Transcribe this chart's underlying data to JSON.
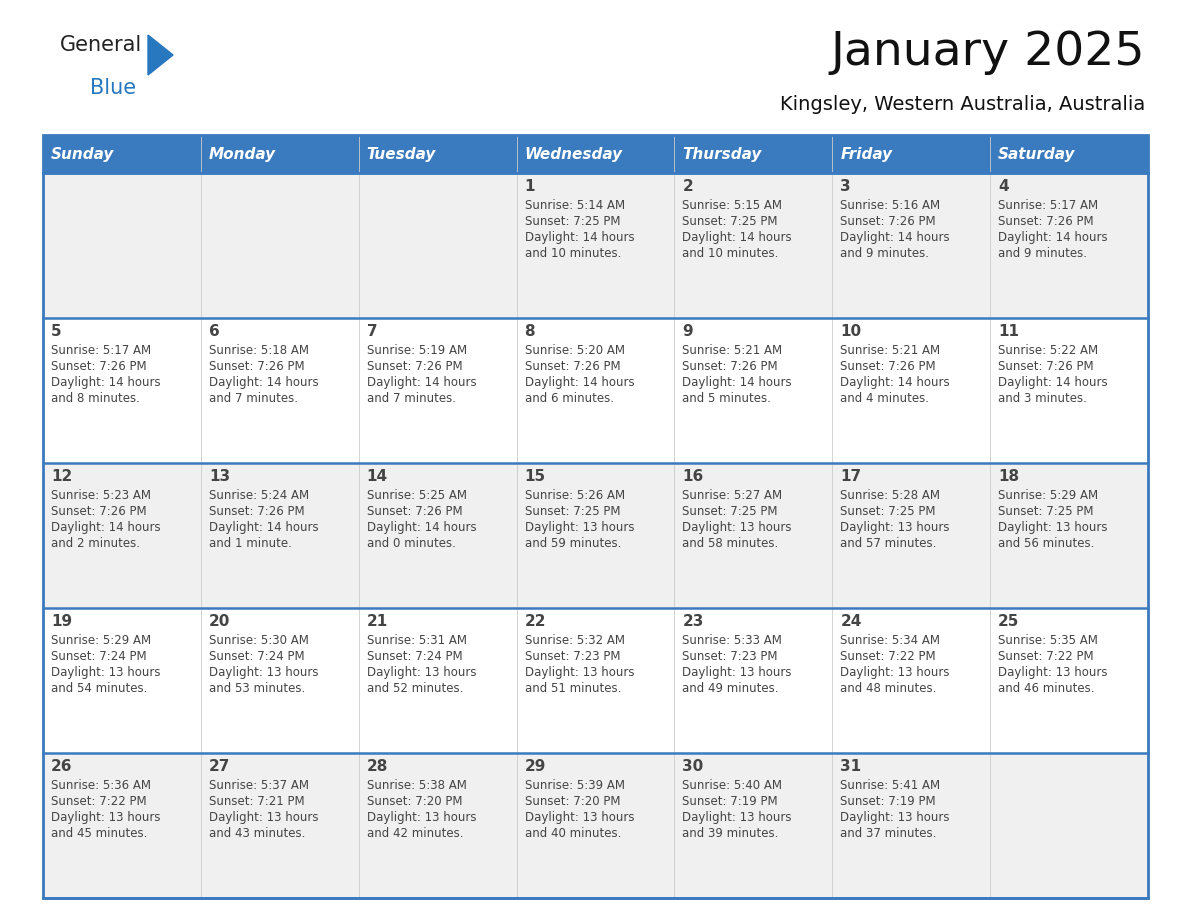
{
  "title": "January 2025",
  "subtitle": "Kingsley, Western Australia, Australia",
  "days_of_week": [
    "Sunday",
    "Monday",
    "Tuesday",
    "Wednesday",
    "Thursday",
    "Friday",
    "Saturday"
  ],
  "header_bg": "#3a7abf",
  "header_text_color": "#ffffff",
  "row_bg_light": "#f0f0f0",
  "row_bg_white": "#ffffff",
  "separator_color": "#3a7abf",
  "text_color": "#444444",
  "calendar_data": [
    [
      null,
      null,
      null,
      {
        "day": 1,
        "sunrise": "5:14 AM",
        "sunset": "7:25 PM",
        "daylight": "14 hours",
        "daylight2": "and 10 minutes."
      },
      {
        "day": 2,
        "sunrise": "5:15 AM",
        "sunset": "7:25 PM",
        "daylight": "14 hours",
        "daylight2": "and 10 minutes."
      },
      {
        "day": 3,
        "sunrise": "5:16 AM",
        "sunset": "7:26 PM",
        "daylight": "14 hours",
        "daylight2": "and 9 minutes."
      },
      {
        "day": 4,
        "sunrise": "5:17 AM",
        "sunset": "7:26 PM",
        "daylight": "14 hours",
        "daylight2": "and 9 minutes."
      }
    ],
    [
      {
        "day": 5,
        "sunrise": "5:17 AM",
        "sunset": "7:26 PM",
        "daylight": "14 hours",
        "daylight2": "and 8 minutes."
      },
      {
        "day": 6,
        "sunrise": "5:18 AM",
        "sunset": "7:26 PM",
        "daylight": "14 hours",
        "daylight2": "and 7 minutes."
      },
      {
        "day": 7,
        "sunrise": "5:19 AM",
        "sunset": "7:26 PM",
        "daylight": "14 hours",
        "daylight2": "and 7 minutes."
      },
      {
        "day": 8,
        "sunrise": "5:20 AM",
        "sunset": "7:26 PM",
        "daylight": "14 hours",
        "daylight2": "and 6 minutes."
      },
      {
        "day": 9,
        "sunrise": "5:21 AM",
        "sunset": "7:26 PM",
        "daylight": "14 hours",
        "daylight2": "and 5 minutes."
      },
      {
        "day": 10,
        "sunrise": "5:21 AM",
        "sunset": "7:26 PM",
        "daylight": "14 hours",
        "daylight2": "and 4 minutes."
      },
      {
        "day": 11,
        "sunrise": "5:22 AM",
        "sunset": "7:26 PM",
        "daylight": "14 hours",
        "daylight2": "and 3 minutes."
      }
    ],
    [
      {
        "day": 12,
        "sunrise": "5:23 AM",
        "sunset": "7:26 PM",
        "daylight": "14 hours",
        "daylight2": "and 2 minutes."
      },
      {
        "day": 13,
        "sunrise": "5:24 AM",
        "sunset": "7:26 PM",
        "daylight": "14 hours",
        "daylight2": "and 1 minute."
      },
      {
        "day": 14,
        "sunrise": "5:25 AM",
        "sunset": "7:26 PM",
        "daylight": "14 hours",
        "daylight2": "and 0 minutes."
      },
      {
        "day": 15,
        "sunrise": "5:26 AM",
        "sunset": "7:25 PM",
        "daylight": "13 hours",
        "daylight2": "and 59 minutes."
      },
      {
        "day": 16,
        "sunrise": "5:27 AM",
        "sunset": "7:25 PM",
        "daylight": "13 hours",
        "daylight2": "and 58 minutes."
      },
      {
        "day": 17,
        "sunrise": "5:28 AM",
        "sunset": "7:25 PM",
        "daylight": "13 hours",
        "daylight2": "and 57 minutes."
      },
      {
        "day": 18,
        "sunrise": "5:29 AM",
        "sunset": "7:25 PM",
        "daylight": "13 hours",
        "daylight2": "and 56 minutes."
      }
    ],
    [
      {
        "day": 19,
        "sunrise": "5:29 AM",
        "sunset": "7:24 PM",
        "daylight": "13 hours",
        "daylight2": "and 54 minutes."
      },
      {
        "day": 20,
        "sunrise": "5:30 AM",
        "sunset": "7:24 PM",
        "daylight": "13 hours",
        "daylight2": "and 53 minutes."
      },
      {
        "day": 21,
        "sunrise": "5:31 AM",
        "sunset": "7:24 PM",
        "daylight": "13 hours",
        "daylight2": "and 52 minutes."
      },
      {
        "day": 22,
        "sunrise": "5:32 AM",
        "sunset": "7:23 PM",
        "daylight": "13 hours",
        "daylight2": "and 51 minutes."
      },
      {
        "day": 23,
        "sunrise": "5:33 AM",
        "sunset": "7:23 PM",
        "daylight": "13 hours",
        "daylight2": "and 49 minutes."
      },
      {
        "day": 24,
        "sunrise": "5:34 AM",
        "sunset": "7:22 PM",
        "daylight": "13 hours",
        "daylight2": "and 48 minutes."
      },
      {
        "day": 25,
        "sunrise": "5:35 AM",
        "sunset": "7:22 PM",
        "daylight": "13 hours",
        "daylight2": "and 46 minutes."
      }
    ],
    [
      {
        "day": 26,
        "sunrise": "5:36 AM",
        "sunset": "7:22 PM",
        "daylight": "13 hours",
        "daylight2": "and 45 minutes."
      },
      {
        "day": 27,
        "sunrise": "5:37 AM",
        "sunset": "7:21 PM",
        "daylight": "13 hours",
        "daylight2": "and 43 minutes."
      },
      {
        "day": 28,
        "sunrise": "5:38 AM",
        "sunset": "7:20 PM",
        "daylight": "13 hours",
        "daylight2": "and 42 minutes."
      },
      {
        "day": 29,
        "sunrise": "5:39 AM",
        "sunset": "7:20 PM",
        "daylight": "13 hours",
        "daylight2": "and 40 minutes."
      },
      {
        "day": 30,
        "sunrise": "5:40 AM",
        "sunset": "7:19 PM",
        "daylight": "13 hours",
        "daylight2": "and 39 minutes."
      },
      {
        "day": 31,
        "sunrise": "5:41 AM",
        "sunset": "7:19 PM",
        "daylight": "13 hours",
        "daylight2": "and 37 minutes."
      },
      null
    ]
  ],
  "logo_text_general": "General",
  "logo_text_blue": "Blue",
  "logo_color_general": "#222222",
  "logo_color_blue": "#2878c0"
}
